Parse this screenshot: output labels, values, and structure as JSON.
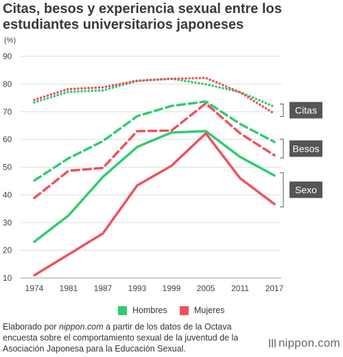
{
  "header": {
    "title": "Citas, besos y experiencia sexual entre los estudiantes universitarios japoneses",
    "unit": "(%)"
  },
  "colors": {
    "hombres": "#2ecc71",
    "mujeres": "#f0505c",
    "grid": "#dddddd",
    "label_box": "#555555"
  },
  "chart_data": {
    "type": "line",
    "x": [
      "1974",
      "1981",
      "1987",
      "1993",
      "1999",
      "2005",
      "2011",
      "2017"
    ],
    "ylim": [
      10,
      90
    ],
    "yticks": [
      "10",
      "20",
      "30",
      "40",
      "50",
      "60",
      "70",
      "80",
      "90"
    ],
    "grid": true,
    "legend_position": "bottom",
    "series": [
      {
        "name": "Hombres",
        "group": "Citas",
        "style": "dotted",
        "color": "#2ecc71",
        "values": [
          73.4,
          77.2,
          77.7,
          81.1,
          81.9,
          79.9,
          77.1,
          71.8
        ]
      },
      {
        "name": "Mujeres",
        "group": "Citas",
        "style": "dotted",
        "color": "#f0505c",
        "values": [
          74.3,
          78.2,
          78.8,
          81.2,
          81.9,
          82.2,
          77.0,
          69.3
        ]
      },
      {
        "name": "Hombres",
        "group": "Besos",
        "style": "dashed",
        "color": "#2ecc71",
        "values": [
          45.2,
          53.2,
          59.4,
          68.4,
          72.1,
          73.7,
          65.6,
          59.1
        ]
      },
      {
        "name": "Mujeres",
        "group": "Besos",
        "style": "dashed",
        "color": "#f0505c",
        "values": [
          38.9,
          48.7,
          49.7,
          63.0,
          63.2,
          73.0,
          62.2,
          54.3
        ]
      },
      {
        "name": "Hombres",
        "group": "Sexo",
        "style": "solid",
        "color": "#2ecc71",
        "values": [
          23.1,
          32.6,
          46.5,
          57.3,
          62.5,
          63.0,
          53.7,
          47.0
        ]
      },
      {
        "name": "Mujeres",
        "group": "Sexo",
        "style": "solid",
        "color": "#f0505c",
        "values": [
          11.0,
          18.5,
          26.1,
          43.4,
          50.5,
          62.2,
          46.0,
          36.7
        ]
      }
    ],
    "group_labels": [
      "Citas",
      "Besos",
      "Sexo"
    ],
    "legend": [
      "Hombres",
      "Mujeres"
    ]
  },
  "footer": {
    "note_before": "Elaborado por ",
    "note_site": "nippon.com",
    "note_after": " a partir de los datos de la Octava encuesta sobre el comportamiento sexual de la juventud de la Asociación Japonesa para la Educación Sexual.",
    "logo_text": "nippon.com"
  }
}
